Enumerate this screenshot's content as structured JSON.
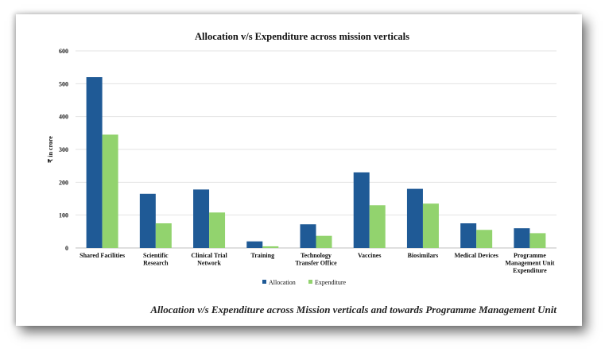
{
  "caption": "Allocation v/s Expenditure across Mission verticals and towards Programme Management Unit",
  "chart_data": {
    "type": "bar",
    "title": "Allocation v/s Expenditure across mission verticals",
    "ylabel": "₹ in crore",
    "xlabel": "",
    "ylim": [
      0,
      600
    ],
    "yticks": [
      0,
      100,
      200,
      300,
      400,
      500,
      600
    ],
    "grid": true,
    "legend_position": "bottom-center",
    "categories": [
      [
        "Shared Facilities"
      ],
      [
        "Scientific",
        "Research"
      ],
      [
        "Clinical Trial",
        "Network"
      ],
      [
        "Training"
      ],
      [
        "Technology",
        "Transfer Office"
      ],
      [
        "Vaccines"
      ],
      [
        "Biosimilars"
      ],
      [
        "Medical Devices"
      ],
      [
        "Programme",
        "Management Unit",
        "Expenditure"
      ]
    ],
    "series": [
      {
        "name": "Allocation",
        "color": "#1f5a96",
        "values": [
          520,
          165,
          178,
          20,
          72,
          230,
          180,
          75,
          60
        ]
      },
      {
        "name": "Expenditure",
        "color": "#92d36e",
        "values": [
          345,
          75,
          108,
          5,
          37,
          130,
          135,
          55,
          45
        ]
      }
    ]
  }
}
